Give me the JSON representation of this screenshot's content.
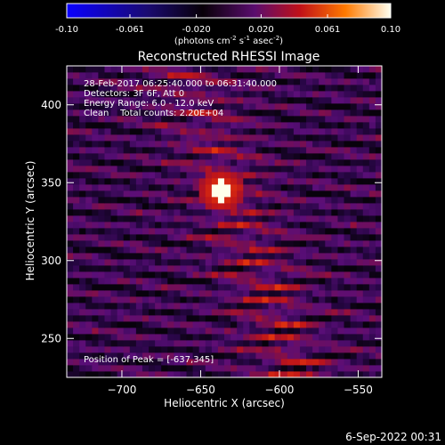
{
  "colorbar": {
    "ticks": [
      "-0.10",
      "-0.061",
      "-0.020",
      "0.020",
      "0.061",
      "0.10"
    ],
    "tick_values": [
      -0.1,
      -0.061,
      -0.02,
      0.02,
      0.061,
      0.1
    ],
    "range": [
      -0.1,
      0.1
    ],
    "unit_label": {
      "prefix": "(photons cm",
      "exp1": "-2",
      "mid1": " s",
      "exp2": "-1",
      "mid2": " asec",
      "exp3": "-2",
      "suffix": ")"
    },
    "colormap": "blue-black-purple-red-yellow-white"
  },
  "chart_data": {
    "type": "heatmap",
    "title": "Reconstructed RHESSI Image",
    "xlabel": "Heliocentric X (arcsec)",
    "ylabel": "Heliocentric Y (arcsec)",
    "xlim": [
      -735,
      -535
    ],
    "ylim": [
      225,
      425
    ],
    "xticks": [
      -700,
      -650,
      -600,
      -550
    ],
    "yticks": [
      250,
      300,
      350,
      400
    ],
    "xtick_labels": [
      "−700",
      "−650",
      "−600",
      "−550"
    ],
    "ytick_labels": [
      "250",
      "300",
      "350",
      "400"
    ],
    "annotations": [
      "28-Feb-2017 06:25:40.000 to 06:31:40.000",
      "Detectors: 3F 6F, Att 0",
      "Energy Range: 6.0 - 12.0 keV",
      "Clean    Total counts: 2.20E+04"
    ],
    "peak_label": "Position of Peak = [-637,345]",
    "peak": {
      "x": -637,
      "y": 345
    },
    "pixel_size_arcsec": 4
  },
  "footer": {
    "date": "6-Sep-2022 00:31"
  }
}
